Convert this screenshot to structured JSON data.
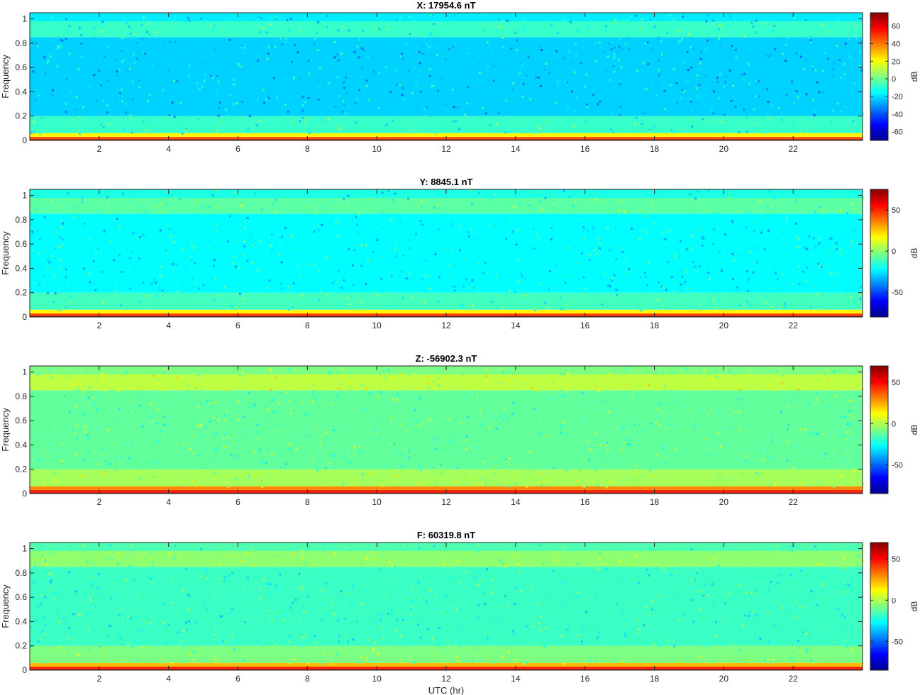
{
  "chart_data": [
    {
      "type": "heatmap",
      "title": "X: 17954.6 nT",
      "xlabel": "",
      "ylabel": "Frequency",
      "xlim": [
        0,
        24
      ],
      "ylim": [
        0,
        1.05
      ],
      "xticks": [
        2,
        4,
        6,
        8,
        10,
        12,
        14,
        16,
        18,
        20,
        22
      ],
      "yticks": [
        0,
        0.2,
        0.4,
        0.6,
        0.8,
        1
      ],
      "colorbar": {
        "label": "dB",
        "limits": [
          -70,
          75
        ],
        "ticks": [
          -60,
          -40,
          -20,
          0,
          20,
          40,
          60
        ]
      },
      "colormap": "jet",
      "bands": [
        {
          "freq": [
            0.0,
            0.01
          ],
          "level_db": 72
        },
        {
          "freq": [
            0.01,
            0.03
          ],
          "level_db": 45
        },
        {
          "freq": [
            0.03,
            0.06
          ],
          "level_db": 22
        },
        {
          "freq": [
            0.06,
            0.2
          ],
          "level_db": -8
        },
        {
          "freq": [
            0.2,
            0.85
          ],
          "level_db": -22
        },
        {
          "freq": [
            0.85,
            0.98
          ],
          "level_db": -8
        },
        {
          "freq": [
            0.98,
            1.05
          ],
          "level_db": -18
        }
      ]
    },
    {
      "type": "heatmap",
      "title": "Y: 8845.1 nT",
      "xlabel": "",
      "ylabel": "Frequency",
      "xlim": [
        0,
        24
      ],
      "ylim": [
        0,
        1.05
      ],
      "xticks": [
        2,
        4,
        6,
        8,
        10,
        12,
        14,
        16,
        18,
        20,
        22
      ],
      "yticks": [
        0,
        0.2,
        0.4,
        0.6,
        0.8,
        1
      ],
      "colorbar": {
        "label": "dB",
        "limits": [
          -80,
          75
        ],
        "ticks": [
          -50,
          0,
          50
        ]
      },
      "colormap": "jet",
      "bands": [
        {
          "freq": [
            0.0,
            0.01
          ],
          "level_db": 72
        },
        {
          "freq": [
            0.01,
            0.03
          ],
          "level_db": 45
        },
        {
          "freq": [
            0.03,
            0.06
          ],
          "level_db": 18
        },
        {
          "freq": [
            0.06,
            0.2
          ],
          "level_db": -12
        },
        {
          "freq": [
            0.2,
            0.85
          ],
          "level_db": -22
        },
        {
          "freq": [
            0.85,
            0.98
          ],
          "level_db": -8
        },
        {
          "freq": [
            0.98,
            1.05
          ],
          "level_db": -18
        }
      ]
    },
    {
      "type": "heatmap",
      "title": "Z: -56902.3 nT",
      "xlabel": "",
      "ylabel": "Frequency",
      "xlim": [
        0,
        24
      ],
      "ylim": [
        0,
        1.05
      ],
      "xticks": [
        2,
        4,
        6,
        8,
        10,
        12,
        14,
        16,
        18,
        20,
        22
      ],
      "yticks": [
        0,
        0.2,
        0.4,
        0.6,
        0.8,
        1
      ],
      "colorbar": {
        "label": "dB",
        "limits": [
          -85,
          70
        ],
        "ticks": [
          -50,
          0,
          50
        ]
      },
      "colormap": "jet",
      "bands": [
        {
          "freq": [
            0.0,
            0.01
          ],
          "level_db": 62
        },
        {
          "freq": [
            0.01,
            0.03
          ],
          "level_db": 45
        },
        {
          "freq": [
            0.03,
            0.06
          ],
          "level_db": 30
        },
        {
          "freq": [
            0.06,
            0.2
          ],
          "level_db": -2
        },
        {
          "freq": [
            0.2,
            0.85
          ],
          "level_db": -12
        },
        {
          "freq": [
            0.85,
            0.98
          ],
          "level_db": 2
        },
        {
          "freq": [
            0.98,
            1.05
          ],
          "level_db": -8
        }
      ]
    },
    {
      "type": "heatmap",
      "title": "F: 60319.8 nT",
      "xlabel": "UTC (hr)",
      "ylabel": "Frequency",
      "xlim": [
        0,
        24
      ],
      "ylim": [
        0,
        1.05
      ],
      "xticks": [
        2,
        4,
        6,
        8,
        10,
        12,
        14,
        16,
        18,
        20,
        22
      ],
      "yticks": [
        0,
        0.2,
        0.4,
        0.6,
        0.8,
        1
      ],
      "colorbar": {
        "label": "dB",
        "limits": [
          -85,
          70
        ],
        "ticks": [
          -50,
          0,
          50
        ]
      },
      "colormap": "jet",
      "bands": [
        {
          "freq": [
            0.0,
            0.01
          ],
          "level_db": 62
        },
        {
          "freq": [
            0.01,
            0.03
          ],
          "level_db": 45
        },
        {
          "freq": [
            0.03,
            0.06
          ],
          "level_db": 22
        },
        {
          "freq": [
            0.06,
            0.2
          ],
          "level_db": -8
        },
        {
          "freq": [
            0.2,
            0.85
          ],
          "level_db": -18
        },
        {
          "freq": [
            0.85,
            0.98
          ],
          "level_db": -5
        },
        {
          "freq": [
            0.98,
            1.05
          ],
          "level_db": -15
        }
      ]
    }
  ]
}
